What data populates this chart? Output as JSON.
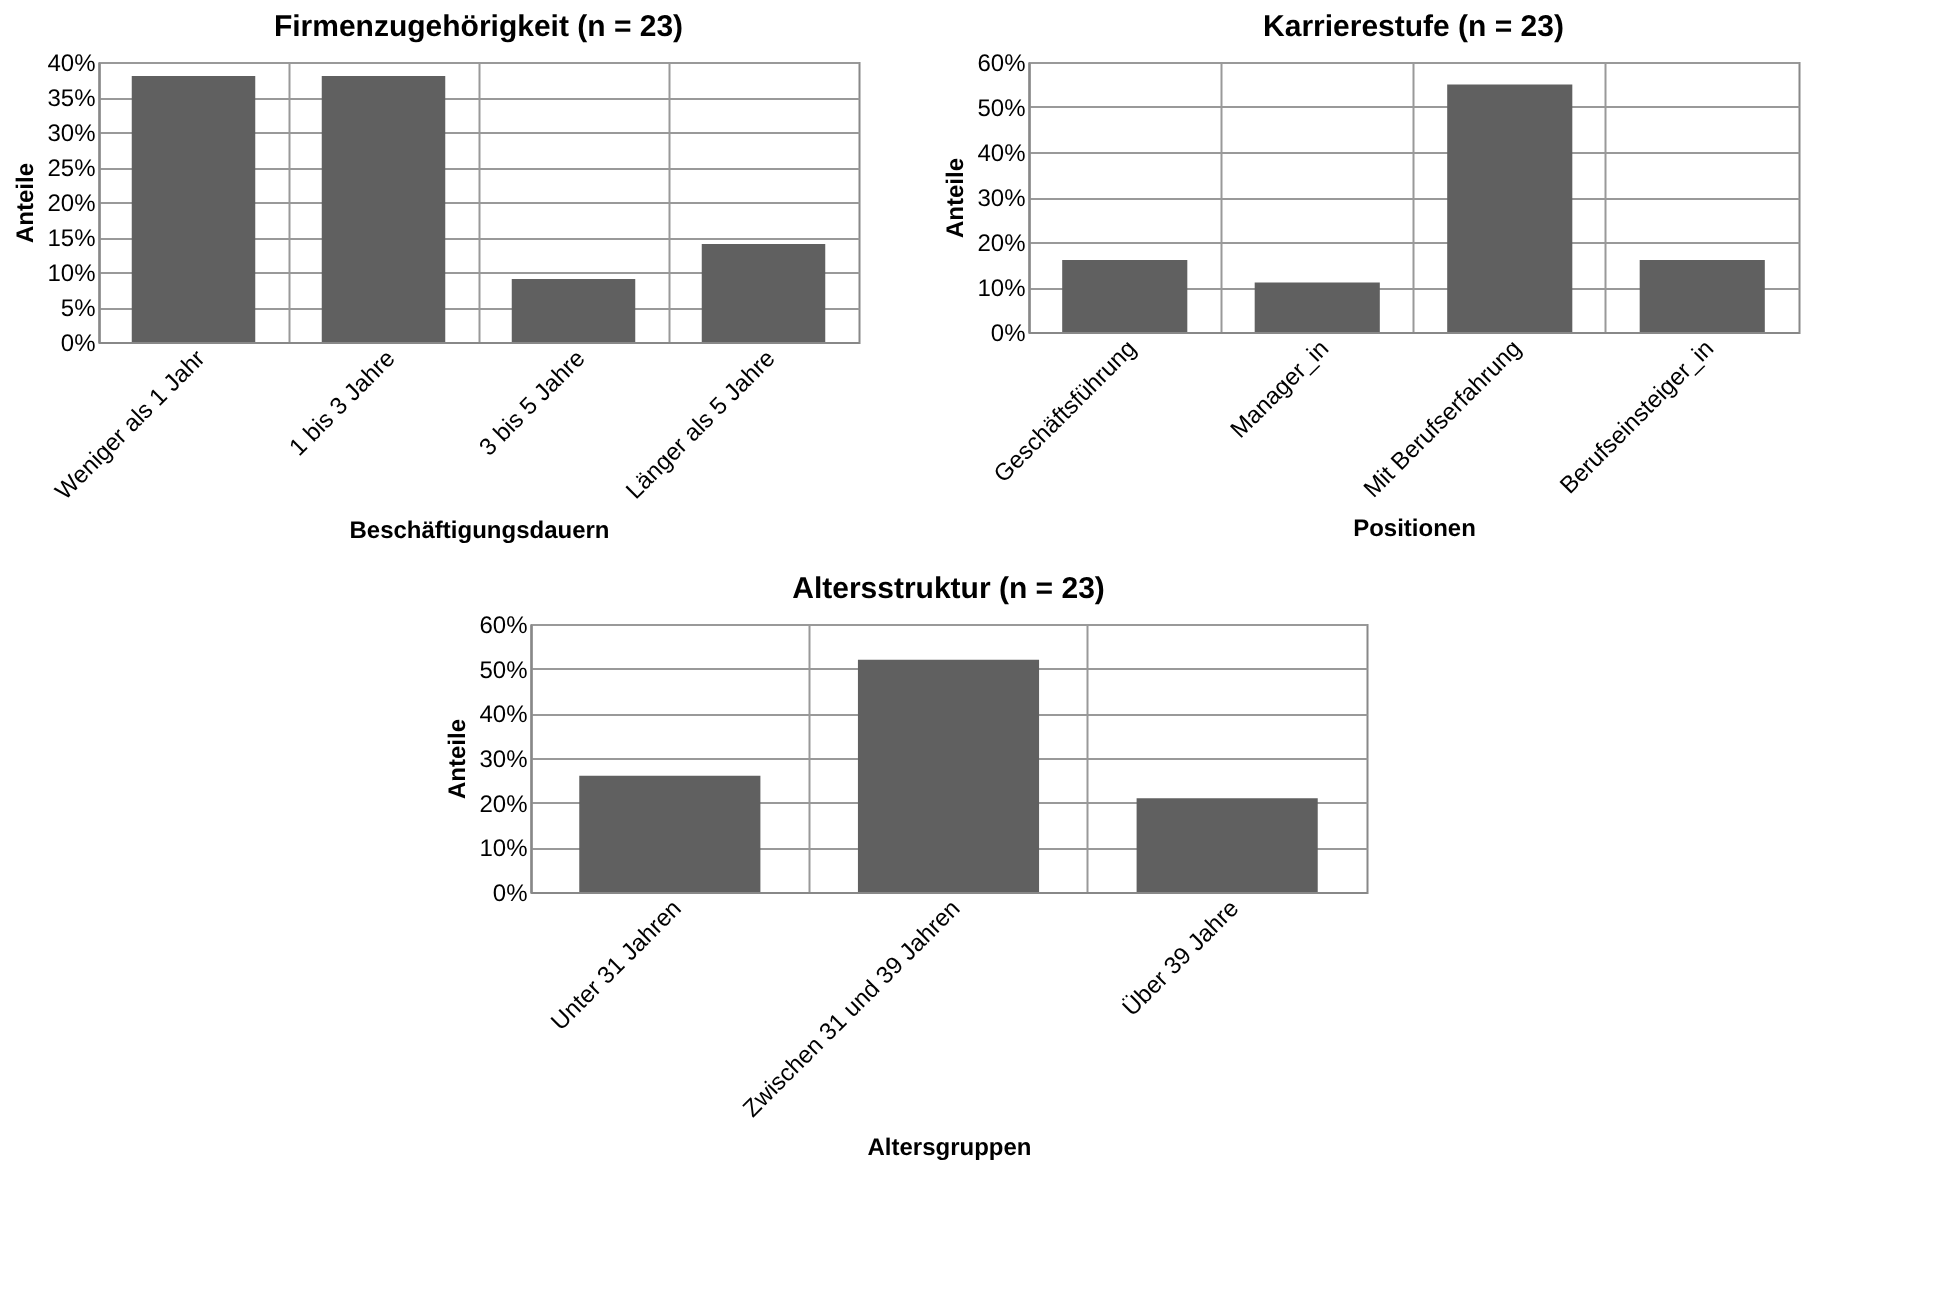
{
  "chart_data": [
    {
      "type": "bar",
      "title": "Firmenzugehörigkeit (n = 23)",
      "xlabel": "Beschäftigungsdauern",
      "ylabel": "Anteile",
      "categories": [
        "Weniger als 1 Jahr",
        "1 bis 3 Jahre",
        "3 bis 5 Jahre",
        "Länger als 5 Jahre"
      ],
      "values": [
        38,
        38,
        9,
        14
      ],
      "color": "#606060",
      "ylim": [
        0,
        40
      ],
      "yticks": [
        {
          "value": 0,
          "label": "0%"
        },
        {
          "value": 5,
          "label": "5%"
        },
        {
          "value": 10,
          "label": "10%"
        },
        {
          "value": 15,
          "label": "15%"
        },
        {
          "value": 20,
          "label": "20%"
        },
        {
          "value": 25,
          "label": "25%"
        },
        {
          "value": 30,
          "label": "30%"
        },
        {
          "value": 35,
          "label": "35%"
        },
        {
          "value": 40,
          "label": "40%"
        }
      ],
      "grid": true
    },
    {
      "type": "bar",
      "title": "Karrierestufe (n = 23)",
      "xlabel": "Positionen",
      "ylabel": "Anteile",
      "categories": [
        "Geschäftsführung",
        "Manager_in",
        "Mit Berufserfahrung",
        "Berufseinsteiger_in"
      ],
      "values": [
        16,
        11,
        55,
        16
      ],
      "color": "#606060",
      "ylim": [
        0,
        60
      ],
      "yticks": [
        {
          "value": 0,
          "label": "0%"
        },
        {
          "value": 10,
          "label": "10%"
        },
        {
          "value": 20,
          "label": "20%"
        },
        {
          "value": 30,
          "label": "30%"
        },
        {
          "value": 40,
          "label": "40%"
        },
        {
          "value": 50,
          "label": "50%"
        },
        {
          "value": 60,
          "label": "60%"
        }
      ],
      "grid": true
    },
    {
      "type": "bar",
      "title": "Altersstruktur (n = 23)",
      "xlabel": "Altersgruppen",
      "ylabel": "Anteile",
      "categories": [
        "Unter 31 Jahren",
        "Zwischen 31 und 39 Jahren",
        "Über 39 Jahre"
      ],
      "values": [
        26,
        52,
        21
      ],
      "color": "#606060",
      "ylim": [
        0,
        60
      ],
      "yticks": [
        {
          "value": 0,
          "label": "0%"
        },
        {
          "value": 10,
          "label": "10%"
        },
        {
          "value": 20,
          "label": "20%"
        },
        {
          "value": 30,
          "label": "30%"
        },
        {
          "value": 40,
          "label": "40%"
        },
        {
          "value": 50,
          "label": "50%"
        },
        {
          "value": 60,
          "label": "60%"
        }
      ],
      "grid": true
    }
  ]
}
